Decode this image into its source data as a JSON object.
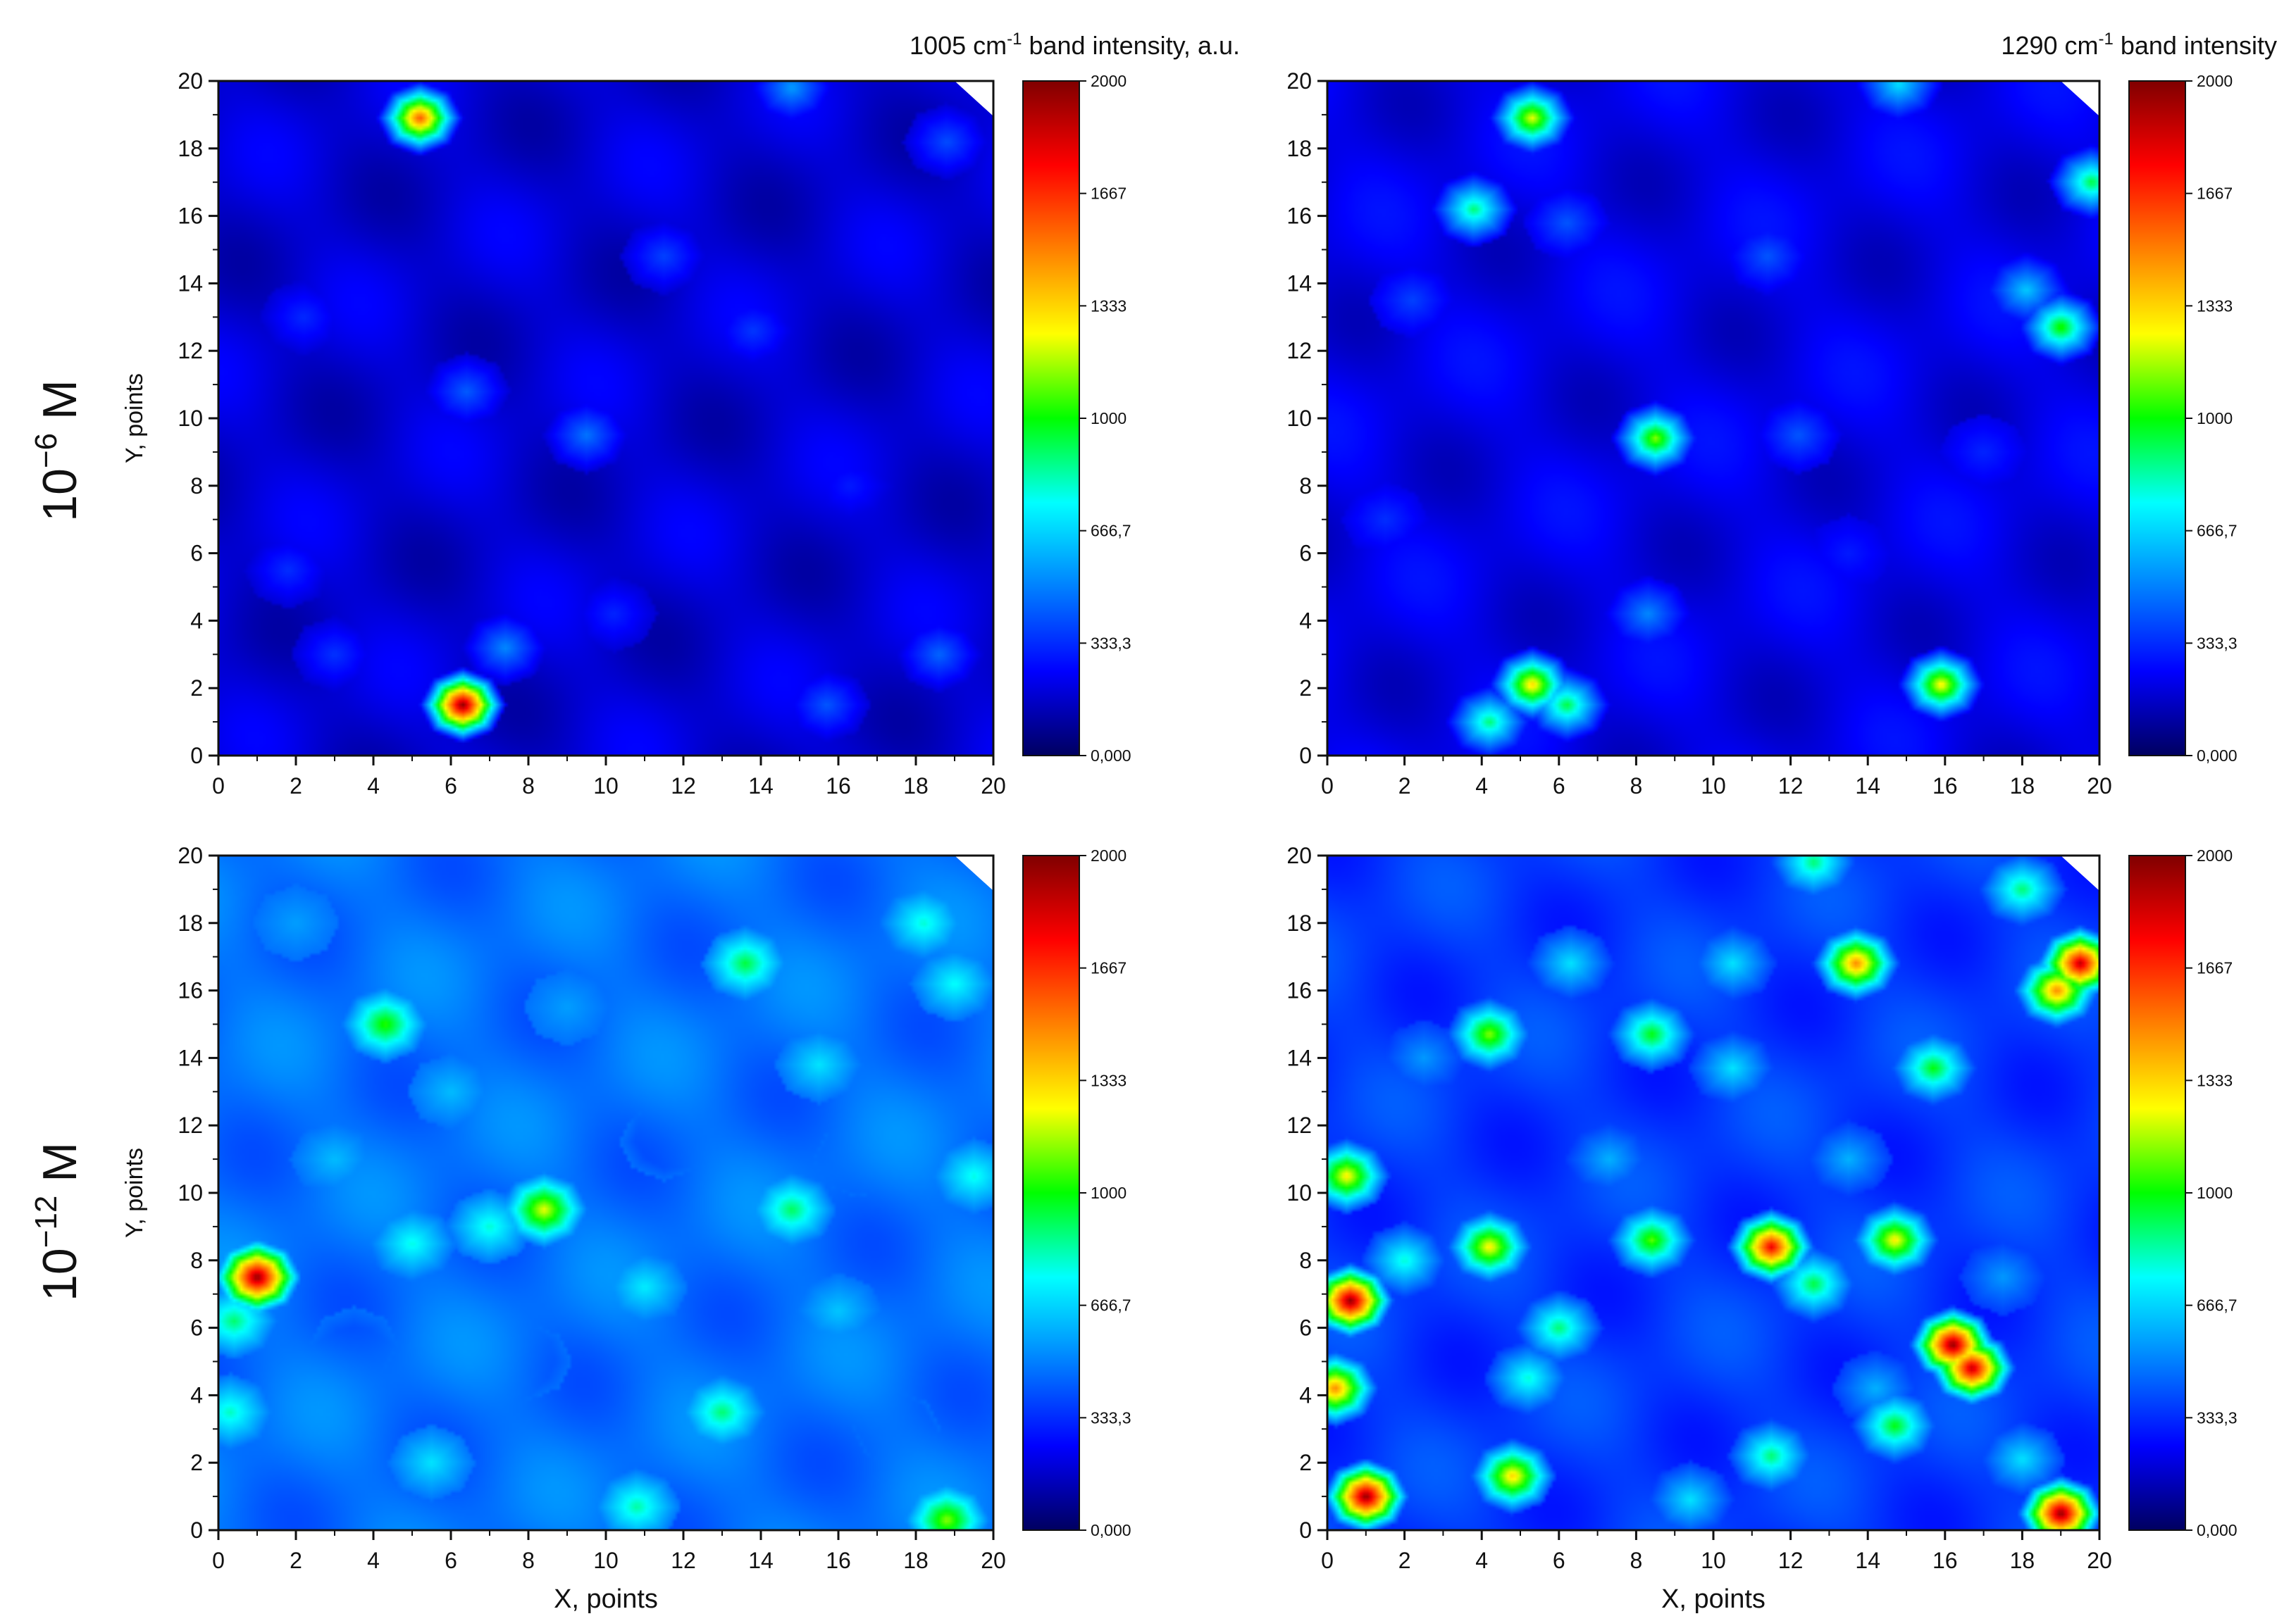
{
  "figure": {
    "row_labels": [
      {
        "base": "10",
        "exp": "−6",
        "unit": " M"
      },
      {
        "base": "10",
        "exp": "−12",
        "unit": " M"
      }
    ],
    "column_titles": [
      {
        "pre": "1005 cm",
        "sup": "-1",
        "post": " band intensity, a.u."
      },
      {
        "pre": "1290 cm",
        "sup": "-1",
        "post": " band intensity"
      }
    ]
  },
  "colors": {
    "scale": [
      "#000060",
      "#0000ff",
      "#0080ff",
      "#00ffff",
      "#00ff00",
      "#ffff00",
      "#ff8000",
      "#ff0000",
      "#800000"
    ],
    "background": "#1e5cf0"
  },
  "chart_data": [
    {
      "type": "heatmap",
      "position": "top-left",
      "xlabel": "",
      "ylabel": "Y, points",
      "xlim": [
        0,
        20
      ],
      "ylim": [
        0,
        20
      ],
      "xticks": [
        "0",
        "2",
        "4",
        "6",
        "8",
        "10",
        "12",
        "14",
        "16",
        "18",
        "20"
      ],
      "yticks": [
        "0",
        "2",
        "4",
        "6",
        "8",
        "10",
        "12",
        "14",
        "16",
        "18",
        "20"
      ],
      "colorbar": {
        "min": 0,
        "max": 2000,
        "ticks": [
          "0,000",
          "333,3",
          "666,7",
          "1000",
          "1333",
          "1667",
          "2000"
        ]
      },
      "base_value": 180,
      "hotspots": [
        {
          "x": 6.3,
          "y": 1.5,
          "value": 2000
        },
        {
          "x": 5.2,
          "y": 18.9,
          "value": 1600
        },
        {
          "x": 7.4,
          "y": 3.2,
          "value": 520
        },
        {
          "x": 6.4,
          "y": 10.8,
          "value": 430
        },
        {
          "x": 9.5,
          "y": 9.5,
          "value": 480
        },
        {
          "x": 11.5,
          "y": 14.8,
          "value": 380
        },
        {
          "x": 13.8,
          "y": 12.6,
          "value": 360
        },
        {
          "x": 14.8,
          "y": 19.8,
          "value": 560
        },
        {
          "x": 18.8,
          "y": 18.2,
          "value": 400
        },
        {
          "x": 2.2,
          "y": 13.0,
          "value": 330
        },
        {
          "x": 1.8,
          "y": 5.5,
          "value": 340
        },
        {
          "x": 10.2,
          "y": 4.2,
          "value": 320
        },
        {
          "x": 15.7,
          "y": 1.5,
          "value": 420
        },
        {
          "x": 18.6,
          "y": 3.0,
          "value": 450
        },
        {
          "x": 3.0,
          "y": 3.0,
          "value": 350
        },
        {
          "x": 16.3,
          "y": 8.0,
          "value": 300
        }
      ]
    },
    {
      "type": "heatmap",
      "position": "top-right",
      "xlabel": "",
      "ylabel": "",
      "xlim": [
        0,
        20
      ],
      "ylim": [
        0,
        20
      ],
      "xticks": [
        "0",
        "2",
        "4",
        "6",
        "8",
        "10",
        "12",
        "14",
        "16",
        "18",
        "20"
      ],
      "yticks": [
        "0",
        "2",
        "4",
        "6",
        "8",
        "10",
        "12",
        "14",
        "16",
        "18",
        "20"
      ],
      "colorbar": {
        "min": 0,
        "max": 2000,
        "ticks": [
          "0,000",
          "333,3",
          "666,7",
          "1000",
          "1333",
          "1667",
          "2000"
        ]
      },
      "base_value": 210,
      "hotspots": [
        {
          "x": 5.3,
          "y": 18.9,
          "value": 1250
        },
        {
          "x": 3.8,
          "y": 16.2,
          "value": 900
        },
        {
          "x": 8.5,
          "y": 9.4,
          "value": 1150
        },
        {
          "x": 19.0,
          "y": 12.7,
          "value": 1050
        },
        {
          "x": 5.3,
          "y": 2.1,
          "value": 1350
        },
        {
          "x": 6.2,
          "y": 1.5,
          "value": 950
        },
        {
          "x": 4.2,
          "y": 1.0,
          "value": 900
        },
        {
          "x": 15.9,
          "y": 2.1,
          "value": 1300
        },
        {
          "x": 18.1,
          "y": 13.8,
          "value": 650
        },
        {
          "x": 19.8,
          "y": 17.0,
          "value": 950
        },
        {
          "x": 14.8,
          "y": 19.9,
          "value": 700
        },
        {
          "x": 12.2,
          "y": 9.5,
          "value": 420
        },
        {
          "x": 8.3,
          "y": 4.2,
          "value": 520
        },
        {
          "x": 2.2,
          "y": 13.5,
          "value": 380
        },
        {
          "x": 11.4,
          "y": 14.8,
          "value": 420
        },
        {
          "x": 1.5,
          "y": 7.0,
          "value": 340
        },
        {
          "x": 17.0,
          "y": 9.0,
          "value": 320
        },
        {
          "x": 13.5,
          "y": 6.0,
          "value": 300
        },
        {
          "x": 6.2,
          "y": 15.8,
          "value": 420
        }
      ]
    },
    {
      "type": "heatmap",
      "position": "bottom-left",
      "xlabel": "X, points",
      "ylabel": "Y, points",
      "xlim": [
        0,
        20
      ],
      "ylim": [
        0,
        20
      ],
      "xticks": [
        "0",
        "2",
        "4",
        "6",
        "8",
        "10",
        "12",
        "14",
        "16",
        "18",
        "20"
      ],
      "yticks": [
        "0",
        "2",
        "4",
        "6",
        "8",
        "10",
        "12",
        "14",
        "16",
        "18",
        "20"
      ],
      "colorbar": {
        "min": 0,
        "max": 2000,
        "ticks": [
          "0,000",
          "333,3",
          "666,7",
          "1000",
          "1333",
          "1667",
          "2000"
        ]
      },
      "base_value": 470,
      "hotspots": [
        {
          "x": 1.0,
          "y": 7.5,
          "value": 2000
        },
        {
          "x": 0.4,
          "y": 6.2,
          "value": 900
        },
        {
          "x": 0.3,
          "y": 3.5,
          "value": 820
        },
        {
          "x": 4.3,
          "y": 15.0,
          "value": 1050
        },
        {
          "x": 8.4,
          "y": 9.5,
          "value": 1250
        },
        {
          "x": 7.0,
          "y": 9.0,
          "value": 800
        },
        {
          "x": 5.0,
          "y": 8.5,
          "value": 780
        },
        {
          "x": 13.6,
          "y": 16.8,
          "value": 950
        },
        {
          "x": 14.8,
          "y": 9.5,
          "value": 920
        },
        {
          "x": 13.0,
          "y": 3.5,
          "value": 900
        },
        {
          "x": 10.8,
          "y": 0.7,
          "value": 850
        },
        {
          "x": 18.8,
          "y": 0.3,
          "value": 1150
        },
        {
          "x": 18.2,
          "y": 18.0,
          "value": 800
        },
        {
          "x": 19.0,
          "y": 16.2,
          "value": 760
        },
        {
          "x": 15.5,
          "y": 13.8,
          "value": 700
        },
        {
          "x": 5.5,
          "y": 2.0,
          "value": 700
        },
        {
          "x": 11.0,
          "y": 7.2,
          "value": 720
        },
        {
          "x": 19.5,
          "y": 10.5,
          "value": 780
        },
        {
          "x": 16.0,
          "y": 6.5,
          "value": 640
        },
        {
          "x": 3.0,
          "y": 11.0,
          "value": 620
        },
        {
          "x": 6.0,
          "y": 13.0,
          "value": 620
        },
        {
          "x": 2.0,
          "y": 18.0,
          "value": 560
        },
        {
          "x": 9.0,
          "y": 15.5,
          "value": 560
        },
        {
          "x": 17.5,
          "y": 3.0,
          "value": 260
        },
        {
          "x": 11.5,
          "y": 11.5,
          "value": 300
        },
        {
          "x": 16.5,
          "y": 11.0,
          "value": 280
        },
        {
          "x": 8.0,
          "y": 5.0,
          "value": 350
        },
        {
          "x": 3.5,
          "y": 5.5,
          "value": 360
        }
      ]
    },
    {
      "type": "heatmap",
      "position": "bottom-right",
      "xlabel": "X, points",
      "ylabel": "",
      "xlim": [
        0,
        20
      ],
      "ylim": [
        0,
        20
      ],
      "xticks": [
        "0",
        "2",
        "4",
        "6",
        "8",
        "10",
        "12",
        "14",
        "16",
        "18",
        "20"
      ],
      "yticks": [
        "0",
        "2",
        "4",
        "6",
        "8",
        "10",
        "12",
        "14",
        "16",
        "18",
        "20"
      ],
      "colorbar": {
        "min": 0,
        "max": 2000,
        "ticks": [
          "0,000",
          "333,3",
          "666,7",
          "1000",
          "1333",
          "1667",
          "2000"
        ]
      },
      "base_value": 360,
      "hotspots": [
        {
          "x": 0.6,
          "y": 6.8,
          "value": 2000
        },
        {
          "x": 0.2,
          "y": 4.2,
          "value": 1500
        },
        {
          "x": 0.5,
          "y": 10.5,
          "value": 1300
        },
        {
          "x": 1.0,
          "y": 1.0,
          "value": 2000
        },
        {
          "x": 16.2,
          "y": 5.5,
          "value": 2000
        },
        {
          "x": 16.7,
          "y": 4.8,
          "value": 1900
        },
        {
          "x": 19.5,
          "y": 16.8,
          "value": 1900
        },
        {
          "x": 18.9,
          "y": 16.0,
          "value": 1500
        },
        {
          "x": 19.0,
          "y": 0.5,
          "value": 2000
        },
        {
          "x": 11.5,
          "y": 8.4,
          "value": 1800
        },
        {
          "x": 13.7,
          "y": 16.8,
          "value": 1500
        },
        {
          "x": 14.7,
          "y": 8.6,
          "value": 1300
        },
        {
          "x": 4.2,
          "y": 8.4,
          "value": 1300
        },
        {
          "x": 4.8,
          "y": 1.6,
          "value": 1350
        },
        {
          "x": 8.4,
          "y": 8.6,
          "value": 1100
        },
        {
          "x": 4.2,
          "y": 14.7,
          "value": 1150
        },
        {
          "x": 8.4,
          "y": 14.7,
          "value": 1000
        },
        {
          "x": 14.7,
          "y": 3.1,
          "value": 1000
        },
        {
          "x": 12.6,
          "y": 7.3,
          "value": 950
        },
        {
          "x": 15.7,
          "y": 13.7,
          "value": 1000
        },
        {
          "x": 11.5,
          "y": 2.2,
          "value": 900
        },
        {
          "x": 12.6,
          "y": 19.8,
          "value": 900
        },
        {
          "x": 18.0,
          "y": 19.0,
          "value": 900
        },
        {
          "x": 6.0,
          "y": 6.0,
          "value": 900
        },
        {
          "x": 5.2,
          "y": 4.5,
          "value": 800
        },
        {
          "x": 6.3,
          "y": 16.8,
          "value": 700
        },
        {
          "x": 10.5,
          "y": 16.8,
          "value": 700
        },
        {
          "x": 10.5,
          "y": 13.7,
          "value": 700
        },
        {
          "x": 14.2,
          "y": 4.2,
          "value": 600
        },
        {
          "x": 9.4,
          "y": 0.9,
          "value": 700
        },
        {
          "x": 18.0,
          "y": 2.1,
          "value": 700
        },
        {
          "x": 7.3,
          "y": 11.0,
          "value": 600
        },
        {
          "x": 2.5,
          "y": 14.0,
          "value": 550
        },
        {
          "x": 2.0,
          "y": 8.0,
          "value": 800
        },
        {
          "x": 13.5,
          "y": 11.0,
          "value": 600
        },
        {
          "x": 17.5,
          "y": 7.5,
          "value": 550
        }
      ]
    }
  ]
}
